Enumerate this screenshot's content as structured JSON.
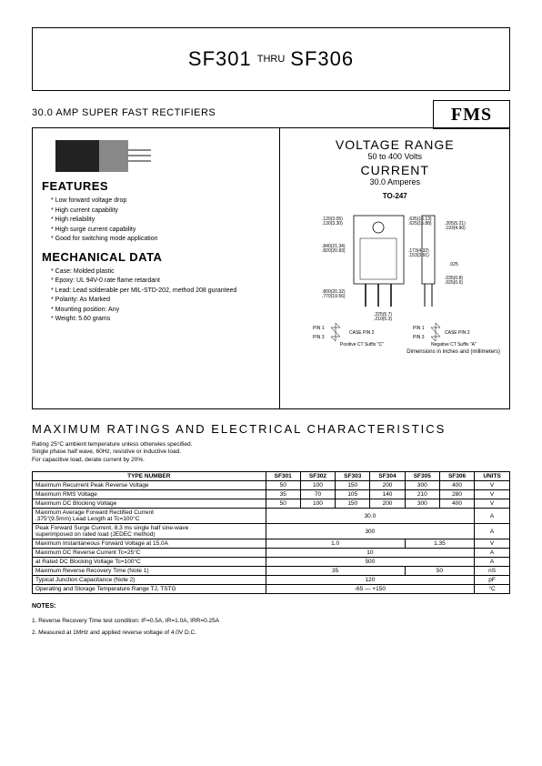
{
  "title": {
    "part_start": "SF301",
    "thru": "THRU",
    "part_end": "SF306"
  },
  "logo": "FMS",
  "subtitle": "30.0 AMP SUPER FAST RECTIFIERS",
  "features": {
    "heading": "FEATURES",
    "items": [
      "Low forward voltage drop",
      "High current capability",
      "High reliability",
      "High surge current capability",
      "Good for switching mode application"
    ]
  },
  "mechanical": {
    "heading": "MECHANICAL DATA",
    "items": [
      "Case: Molded plastic",
      "Epoxy: UL 94V-0 rate flame retardant",
      "Lead: Lead solderable per MIL-STD-202, method 208 guranteed",
      "Polarity: As Marked",
      "Mounting position: Any",
      "Weight: 5.60 grams"
    ]
  },
  "voltage_range": {
    "title": "VOLTAGE RANGE",
    "value": "50 to 400 Volts",
    "current_title": "CURRENT",
    "current_value": "30.0 Amperes",
    "package": "TO-247",
    "dim_note": "Dimensions in inches and (millimeters)"
  },
  "ratings": {
    "heading": "MAXIMUM RATINGS AND ELECTRICAL CHARACTERISTICS",
    "note": "Rating 25°C ambient temperature unless otherwies specified.\nSingle phase half wave, 60Hz, resistive or inductive load.\nFor capacitive load, derate current by 20%.",
    "columns": [
      "TYPE NUMBER",
      "SF301",
      "SF302",
      "SF303",
      "SF304",
      "SF305",
      "SF306",
      "UNITS"
    ],
    "rows": [
      {
        "label": "Maximum Recurrent Peak Reverse Voltage",
        "cells": [
          "50",
          "100",
          "150",
          "200",
          "300",
          "400"
        ],
        "unit": "V"
      },
      {
        "label": "Maximum RMS Voltage",
        "cells": [
          "35",
          "70",
          "105",
          "140",
          "210",
          "280"
        ],
        "unit": "V"
      },
      {
        "label": "Maximum DC Blocking Voltage",
        "cells": [
          "50",
          "100",
          "150",
          "200",
          "300",
          "400"
        ],
        "unit": "V"
      },
      {
        "label": "Maximum Average Forward Rectified Current\n.375\"(9.5mm) Lead Length at Tc=100°C",
        "span": "30.0",
        "unit": "A"
      },
      {
        "label": "Peak Forward Surge Current, 8.3 ms single half sine-wave\nsuperimposed on rated load (JEDEC method)",
        "span": "300",
        "unit": "A"
      },
      {
        "label": "Maximum Instantaneous Forward Voltage at 15.0A",
        "split": [
          {
            "v": "1.0",
            "c": 4
          },
          {
            "v": "1.35",
            "c": 2
          }
        ],
        "unit": "V"
      },
      {
        "label": "Maximum DC Reverse Current            Tc=25°C",
        "span": "10",
        "unit": "A"
      },
      {
        "label": "at Rated DC Blocking Voltage            Tc=100°C",
        "span": "500",
        "unit": "A"
      },
      {
        "label": "Maximum Reverse Recovery Time (Note 1)",
        "split": [
          {
            "v": "35",
            "c": 4
          },
          {
            "v": "50",
            "c": 2
          }
        ],
        "unit": "nS"
      },
      {
        "label": "Typical Junction Capacitance (Note 2)",
        "span": "120",
        "unit": "pF"
      },
      {
        "label": "Operating and Storage Temperature Range TJ, TSTG",
        "span": "-65 — +150",
        "unit": "°C"
      }
    ]
  },
  "notes": {
    "heading": "NOTES:",
    "items": [
      "1. Reverse Recovery Time test condition: IF=0.5A, IR=1.0A, IRR=0.25A",
      "2. Measured at 1MHz and applied reverse voltage of 4.0V D.C."
    ]
  }
}
